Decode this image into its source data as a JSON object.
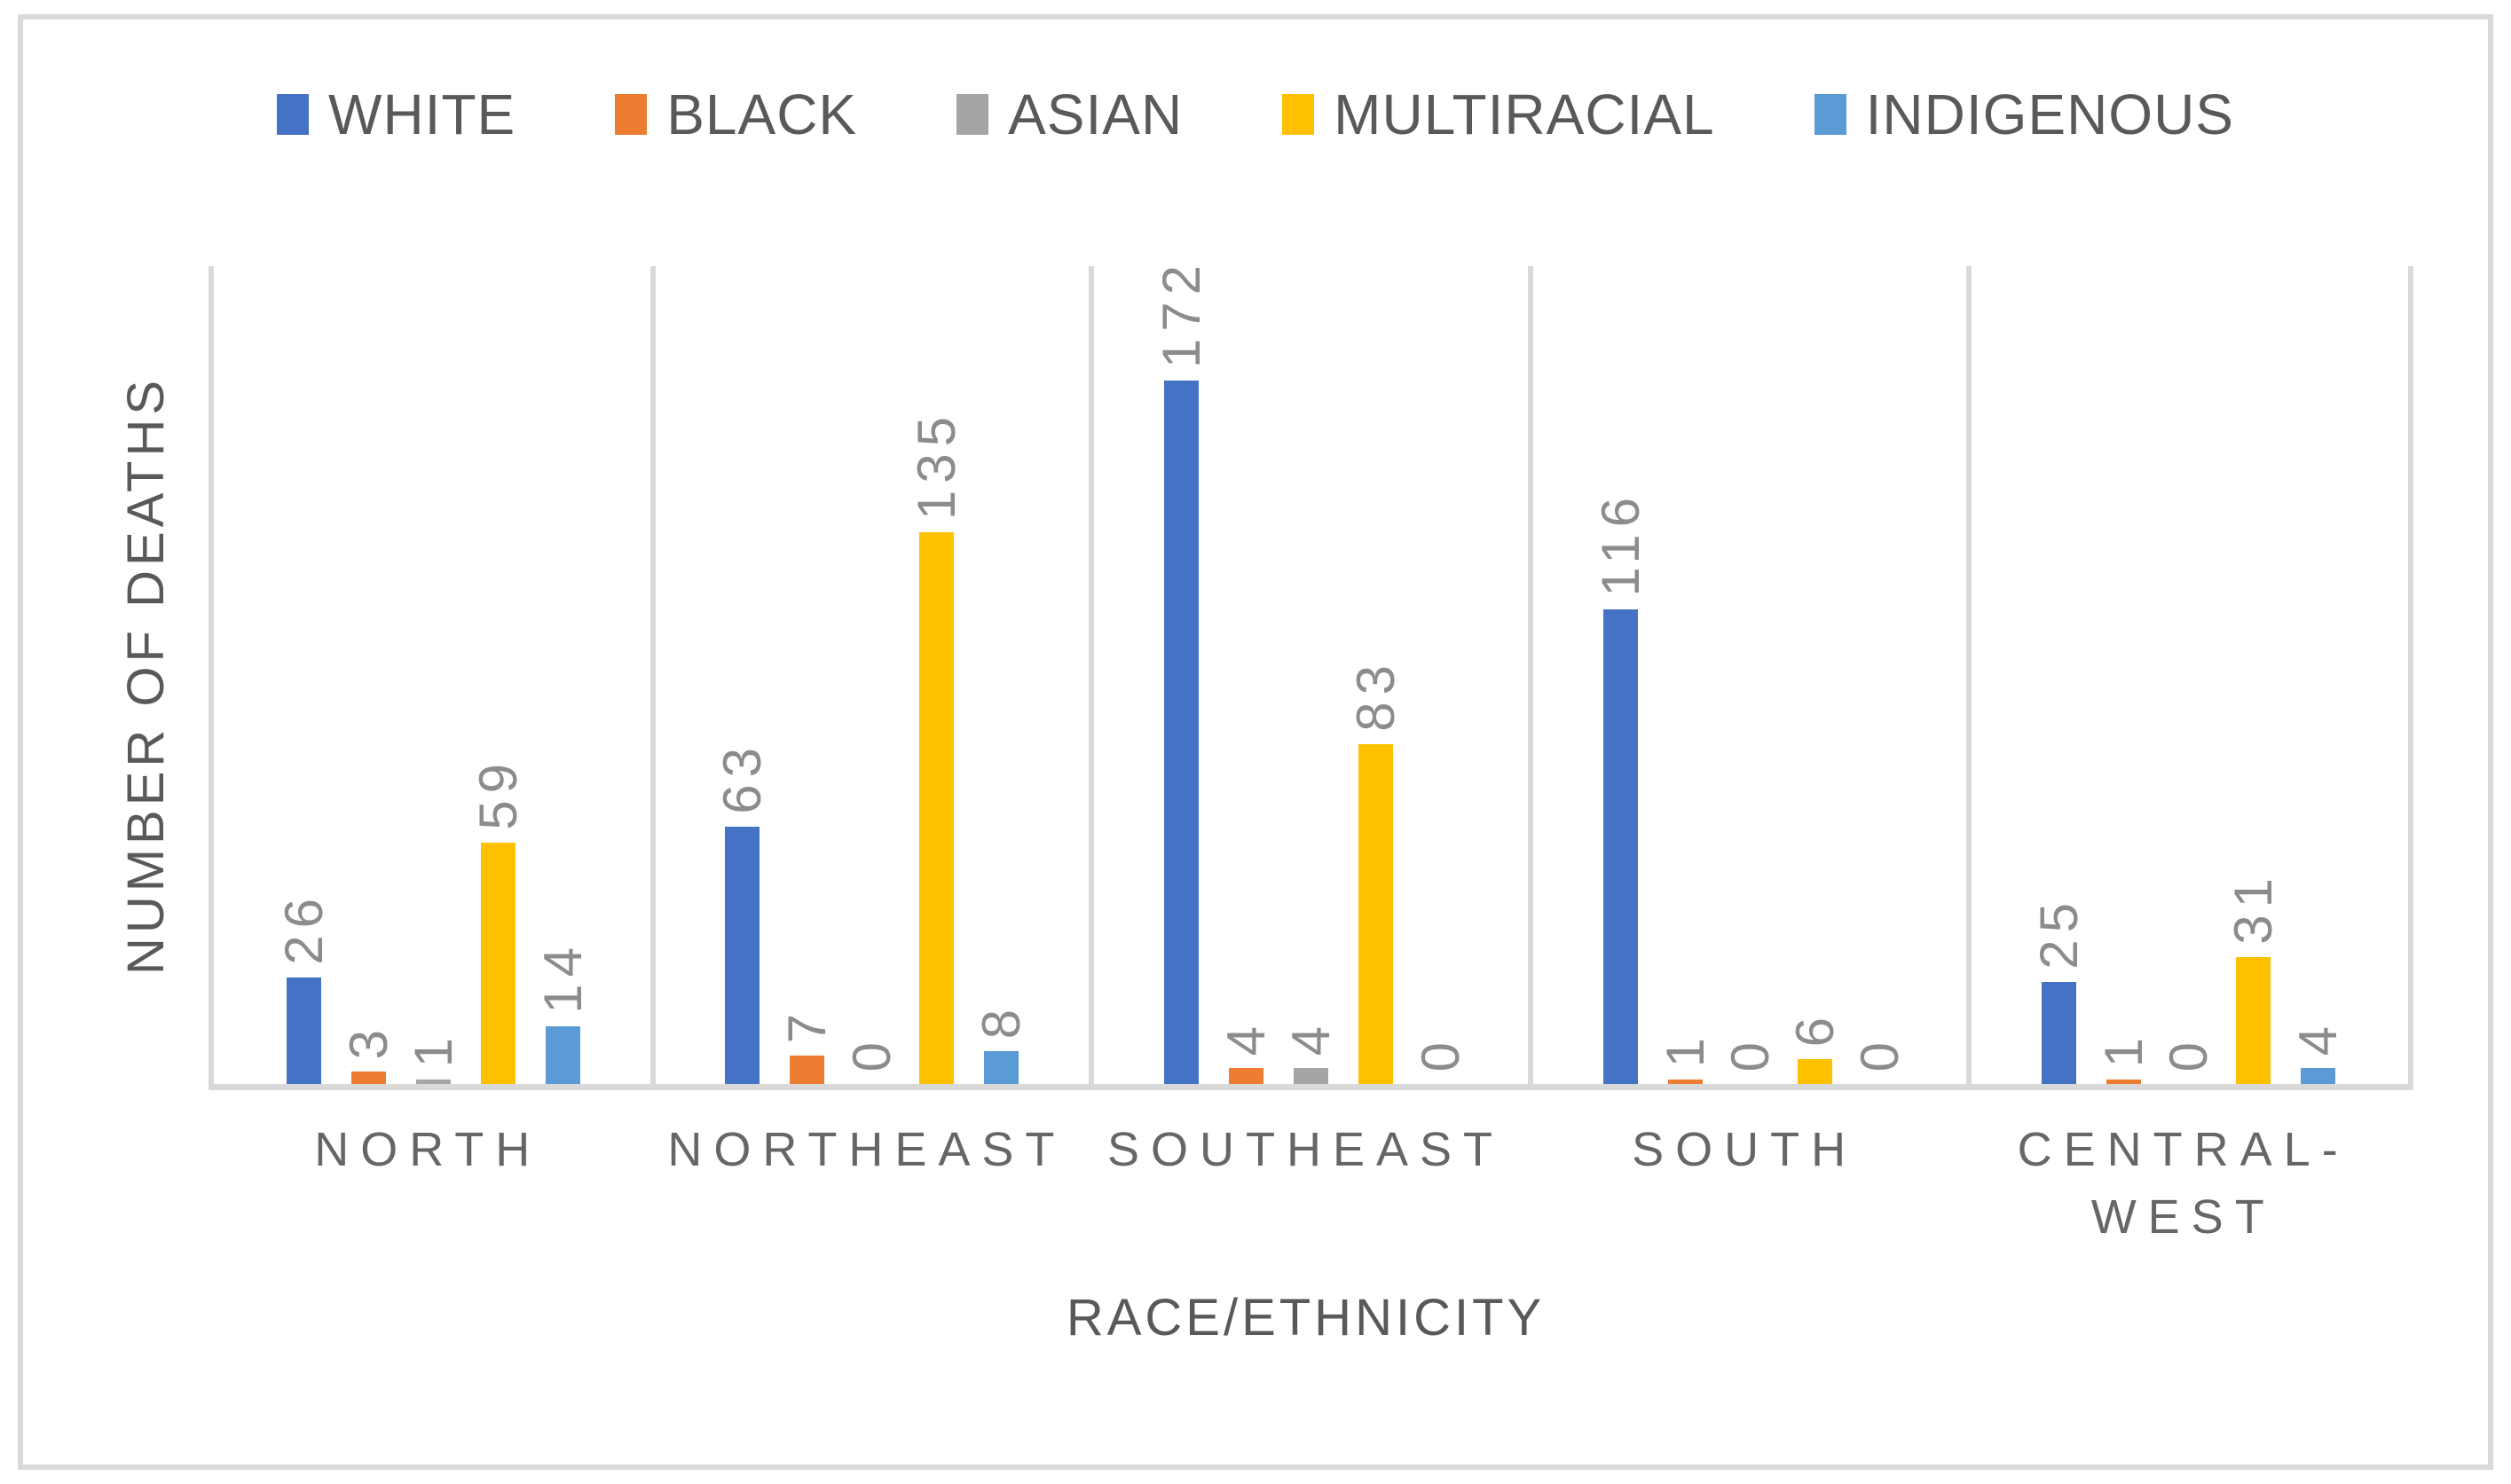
{
  "chart_data": {
    "type": "bar",
    "title": "",
    "categories": [
      "NORTH",
      "NORTHEAST",
      "SOUTHEAST",
      "SOUTH",
      "CENTRAL-WEST"
    ],
    "series": [
      {
        "name": "WHITE",
        "color": "#4472C4",
        "values": [
          26,
          63,
          172,
          116,
          25
        ]
      },
      {
        "name": "BLACK",
        "color": "#ED7D31",
        "values": [
          3,
          7,
          4,
          1,
          1
        ]
      },
      {
        "name": "ASIAN",
        "color": "#A5A5A5",
        "values": [
          1,
          0,
          4,
          0,
          0
        ]
      },
      {
        "name": "MULTIRACIAL",
        "color": "#FFC000",
        "values": [
          59,
          135,
          83,
          6,
          31
        ]
      },
      {
        "name": "INDIGENOUS",
        "color": "#5B9BD5",
        "values": [
          14,
          8,
          0,
          0,
          4
        ]
      }
    ],
    "xlabel": "RACE/ETHNICITY",
    "ylabel": "NUMBER OF DEATHS",
    "ylim": [
      0,
      200
    ],
    "grid": "vertical category separators only",
    "legend_position": "top-center",
    "value_labels": "rotated 90° above bar ends"
  },
  "style_colors": {
    "axis_and_grid_lines": "#D9D9D9",
    "outer_border": "#D9D9D9",
    "legend_text": "#595959",
    "axis_title_text": "#595959",
    "category_label_text": "#666666",
    "value_label_text": "#8C8C8C",
    "background": "#FFFFFF"
  }
}
